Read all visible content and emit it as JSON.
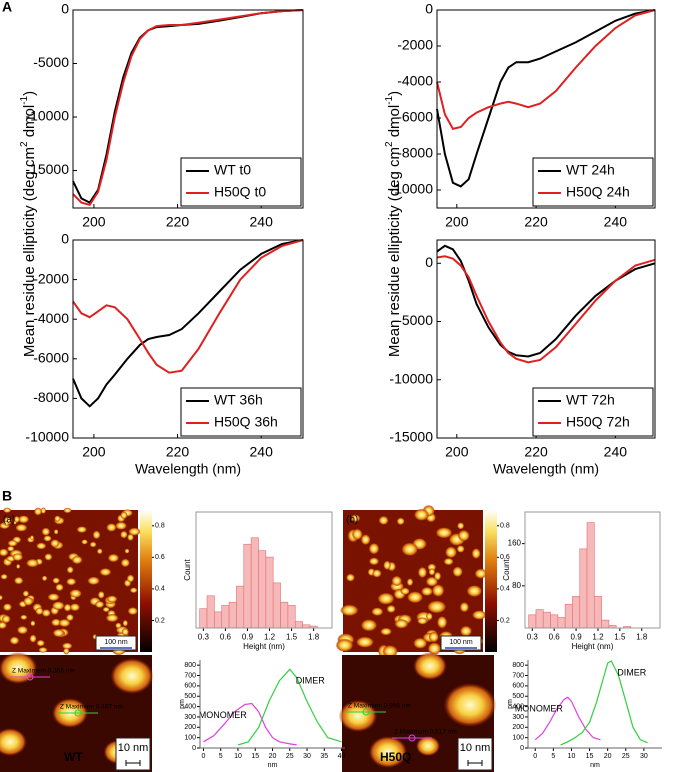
{
  "panel_labels": [
    "A",
    "B"
  ],
  "images": [
    {
      "label": "(a)",
      "scale_bar": "100 nm",
      "colorbar_ticks": [
        0.8,
        0.6,
        0.4,
        0.2
      ],
      "colorbar_range": [
        0,
        0.9
      ]
    },
    {
      "label": "(b)",
      "scale_bar": "100 nm",
      "colorbar_ticks": [
        0.8,
        0.6,
        0.4,
        0.2
      ],
      "colorbar_range": [
        0,
        0.9
      ]
    }
  ],
  "profile_images": [
    {
      "sample": "WT",
      "scale_bar": "10 nm",
      "markers": [
        {
          "text": "Z Maximum 0.366 nm",
          "color": "#e040e0"
        },
        {
          "text": "Z Maximum 0.407 nm",
          "color": "#30d040"
        }
      ]
    },
    {
      "sample": "H50Q",
      "scale_bar": "10 nm",
      "markers": [
        {
          "text": "Z Maximum 0.956 nm",
          "color": "#30d040"
        },
        {
          "text": "Z Maximum 0.517 nm",
          "color": "#e040e0"
        }
      ]
    }
  ],
  "chart_data": [
    {
      "type": "line",
      "frame": true,
      "legend": "lower right",
      "y_label": [
        "Mean residue ellipticity (deg cm",
        "2",
        " dmol",
        "-1",
        ")"
      ],
      "x": [
        195,
        197,
        199,
        201,
        203,
        205,
        207,
        209,
        211,
        213,
        215,
        218,
        221,
        225,
        230,
        235,
        240,
        245,
        250
      ],
      "series": [
        {
          "name": "WT t0",
          "color": "#000000",
          "values": [
            -16000,
            -17600,
            -18000,
            -16800,
            -13500,
            -9500,
            -6300,
            -4000,
            -2600,
            -1900,
            -1600,
            -1500,
            -1400,
            -1300,
            -1000,
            -650,
            -300,
            -100,
            0
          ]
        },
        {
          "name": "H50Q t0",
          "color": "#e02020",
          "values": [
            -17200,
            -18000,
            -18200,
            -17000,
            -14000,
            -10000,
            -6800,
            -4300,
            -2700,
            -1900,
            -1500,
            -1400,
            -1400,
            -1200,
            -900,
            -600,
            -300,
            -100,
            0
          ]
        }
      ],
      "xlim": [
        195,
        250
      ],
      "xticks": [
        200,
        220,
        240
      ],
      "ylim": [
        -18500,
        0
      ],
      "yticks": [
        0,
        -5000,
        -10000,
        -15000
      ]
    },
    {
      "type": "line",
      "frame": true,
      "legend": "lower right",
      "y_label": [
        "Mean residue ellipticity (deg cm",
        "2",
        " dmol",
        "-1",
        ")"
      ],
      "x": [
        195,
        197,
        199,
        201,
        203,
        205,
        208,
        211,
        213,
        215,
        218,
        221,
        225,
        230,
        235,
        240,
        245,
        250
      ],
      "series": [
        {
          "name": "WT 24h",
          "color": "#000000",
          "values": [
            -5500,
            -8000,
            -9600,
            -9800,
            -9400,
            -8000,
            -6000,
            -4000,
            -3200,
            -2900,
            -2900,
            -2700,
            -2300,
            -1800,
            -1200,
            -600,
            -200,
            0
          ]
        },
        {
          "name": "H50Q 24h",
          "color": "#e02020",
          "values": [
            -4000,
            -5800,
            -6600,
            -6500,
            -6000,
            -5700,
            -5400,
            -5200,
            -5100,
            -5200,
            -5400,
            -5200,
            -4500,
            -3200,
            -2000,
            -1000,
            -300,
            0
          ]
        }
      ],
      "xlim": [
        195,
        250
      ],
      "xticks": [
        200,
        220,
        240
      ],
      "ylim": [
        -11000,
        0
      ],
      "yticks": [
        0,
        -2000,
        -4000,
        -6000,
        -8000,
        -10000
      ]
    },
    {
      "type": "line",
      "frame": true,
      "legend": "lower right",
      "x_label": "Wavelength (nm)",
      "x": [
        195,
        197,
        199,
        201,
        203,
        205,
        208,
        211,
        213,
        215,
        218,
        221,
        225,
        230,
        235,
        240,
        245,
        250
      ],
      "series": [
        {
          "name": "WT 36h",
          "color": "#000000",
          "values": [
            -7000,
            -8000,
            -8400,
            -8000,
            -7300,
            -6800,
            -6000,
            -5300,
            -5000,
            -4900,
            -4800,
            -4500,
            -3700,
            -2600,
            -1500,
            -700,
            -200,
            0
          ]
        },
        {
          "name": "H50Q 36h",
          "color": "#e02020",
          "values": [
            -3100,
            -3700,
            -3900,
            -3600,
            -3300,
            -3400,
            -4000,
            -5000,
            -5700,
            -6300,
            -6700,
            -6600,
            -5500,
            -3700,
            -2000,
            -900,
            -300,
            0
          ]
        }
      ],
      "xlim": [
        195,
        250
      ],
      "xticks": [
        200,
        220,
        240
      ],
      "ylim": [
        -10000,
        0
      ],
      "yticks": [
        0,
        -2000,
        -4000,
        -6000,
        -8000,
        -10000
      ]
    },
    {
      "type": "line",
      "frame": true,
      "legend": "lower right",
      "x_label": "Wavelength (nm)",
      "x": [
        195,
        197,
        199,
        201,
        203,
        205,
        208,
        211,
        213,
        215,
        218,
        221,
        225,
        230,
        235,
        240,
        245,
        250
      ],
      "series": [
        {
          "name": "WT 72h",
          "color": "#000000",
          "values": [
            1000,
            1500,
            1200,
            200,
            -1500,
            -3500,
            -5500,
            -7000,
            -7600,
            -7900,
            -8000,
            -7700,
            -6500,
            -4500,
            -2800,
            -1500,
            -500,
            0
          ]
        },
        {
          "name": "H50Q 72h",
          "color": "#e02020",
          "values": [
            500,
            600,
            400,
            -200,
            -1200,
            -2800,
            -5000,
            -6800,
            -7700,
            -8200,
            -8500,
            -8300,
            -7200,
            -5200,
            -3200,
            -1500,
            -200,
            300
          ]
        }
      ],
      "xlim": [
        195,
        250
      ],
      "xticks": [
        200,
        220,
        240
      ],
      "ylim": [
        -15000,
        2000
      ],
      "yticks": [
        0,
        -5000,
        -10000,
        -15000
      ]
    },
    {
      "type": "histogram",
      "frame": true,
      "x_label": "Height (nm)",
      "y_label": "Count",
      "color": "#f6b8b8",
      "bins": [
        0.25,
        0.35,
        0.45,
        0.55,
        0.65,
        0.75,
        0.85,
        0.95,
        1.05,
        1.15,
        1.25,
        1.35,
        1.45,
        1.55,
        1.65,
        1.75,
        1.85
      ],
      "values": [
        30,
        50,
        25,
        35,
        40,
        65,
        130,
        140,
        120,
        110,
        70,
        40,
        35,
        10,
        5,
        3
      ],
      "xlim": [
        0.2,
        2.05
      ],
      "xticks": [
        0.3,
        0.6,
        0.9,
        1.2,
        1.5,
        1.8
      ],
      "ylim": [
        0,
        180
      ],
      "yticks": []
    },
    {
      "type": "histogram",
      "frame": true,
      "x_label": "Height (nm)",
      "y_label": "Count",
      "color": "#f6b8b8",
      "bins": [
        0.25,
        0.35,
        0.45,
        0.55,
        0.65,
        0.75,
        0.85,
        0.95,
        1.05,
        1.15,
        1.25,
        1.35,
        1.45,
        1.55,
        1.65,
        1.75,
        1.85
      ],
      "values": [
        25,
        35,
        30,
        25,
        20,
        45,
        60,
        150,
        200,
        60,
        15,
        5,
        0,
        3,
        0,
        0
      ],
      "xlim": [
        0.2,
        2.05
      ],
      "xticks": [
        0.3,
        0.6,
        0.9,
        1.2,
        1.5,
        1.8
      ],
      "ylim": [
        0,
        220
      ],
      "yticks": [
        80,
        160
      ]
    },
    {
      "type": "line",
      "frame": false,
      "legend": "at peak",
      "x_label": "nm",
      "y_label": "pm",
      "series": [
        {
          "name": "MONOMER",
          "color": "#e040e0",
          "x": [
            0,
            3,
            6,
            9,
            12,
            14,
            16,
            18,
            20,
            22,
            25,
            27
          ],
          "values": [
            60,
            120,
            230,
            350,
            420,
            430,
            350,
            200,
            100,
            60,
            40,
            30
          ]
        },
        {
          "name": "DIMER",
          "color": "#30d040",
          "x": [
            10,
            13,
            16,
            19,
            22,
            25,
            27,
            30,
            33,
            36,
            38,
            40
          ],
          "values": [
            30,
            60,
            200,
            450,
            650,
            760,
            680,
            450,
            250,
            100,
            80,
            60
          ]
        }
      ],
      "xlim": [
        -1,
        41
      ],
      "xticks": [
        0,
        5,
        10,
        15,
        20,
        25,
        30,
        35,
        40
      ],
      "ylim": [
        0,
        850
      ],
      "yticks": [
        0,
        100,
        200,
        300,
        400,
        500,
        600,
        700,
        800
      ]
    },
    {
      "type": "line",
      "frame": false,
      "legend": "at peak",
      "x_label": "nm",
      "y_label": "pm",
      "series": [
        {
          "name": "MONOMER",
          "color": "#e040e0",
          "x": [
            0,
            2,
            4,
            6,
            8,
            9,
            10,
            12,
            14,
            16,
            18
          ],
          "values": [
            80,
            140,
            250,
            380,
            470,
            490,
            450,
            300,
            180,
            100,
            80
          ]
        },
        {
          "name": "DIMER",
          "color": "#30d040",
          "x": [
            7,
            9,
            11,
            13,
            15,
            17,
            19,
            20,
            21,
            23,
            25,
            27,
            29,
            31
          ],
          "values": [
            30,
            60,
            100,
            150,
            250,
            450,
            700,
            820,
            840,
            700,
            450,
            200,
            80,
            50
          ]
        }
      ],
      "xlim": [
        -2,
        35
      ],
      "xticks": [
        0,
        5,
        10,
        15,
        20,
        25,
        30
      ],
      "ylim": [
        0,
        850
      ],
      "yticks": [
        0,
        100,
        200,
        300,
        400,
        500,
        600,
        700,
        800
      ]
    }
  ]
}
